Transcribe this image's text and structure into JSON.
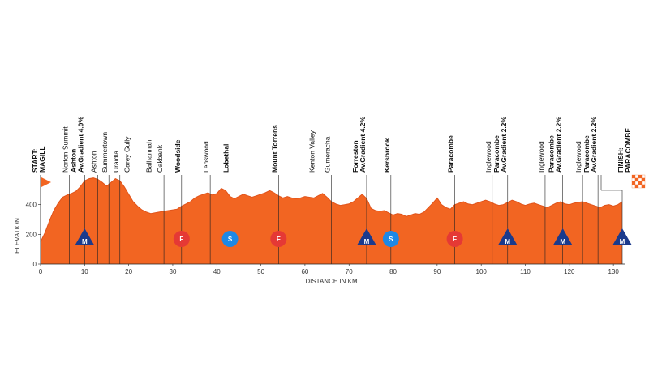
{
  "chart_data": {
    "type": "area",
    "xlabel": "DISTANCE IN KM",
    "ylabel": "ELEVATION",
    "xlim": [
      0,
      132
    ],
    "ylim": [
      0,
      600
    ],
    "x_ticks": [
      0,
      10,
      20,
      30,
      40,
      50,
      60,
      70,
      80,
      90,
      100,
      110,
      120,
      130
    ],
    "y_ticks": [
      0,
      200,
      400
    ],
    "grid": false,
    "colors": {
      "fill": "#f26522",
      "line": "#e0531a",
      "climb": "#1b3a8c",
      "sprint": "#1e88e5",
      "feed": "#e53935"
    },
    "x": [
      0,
      1,
      2,
      3,
      4,
      5,
      6,
      7,
      8,
      9,
      10,
      11,
      12,
      13,
      14,
      15,
      16,
      17,
      18,
      19,
      20,
      21,
      22,
      23,
      24,
      25,
      26,
      27,
      28,
      29,
      30,
      31,
      32,
      33,
      34,
      35,
      36,
      37,
      38,
      39,
      40,
      41,
      42,
      43,
      44,
      45,
      46,
      47,
      48,
      49,
      50,
      51,
      52,
      53,
      54,
      55,
      56,
      57,
      58,
      59,
      60,
      61,
      62,
      63,
      64,
      65,
      66,
      67,
      68,
      69,
      70,
      71,
      72,
      73,
      74,
      75,
      76,
      77,
      78,
      79,
      80,
      81,
      82,
      83,
      84,
      85,
      86,
      87,
      88,
      89,
      90,
      91,
      92,
      93,
      94,
      95,
      96,
      97,
      98,
      99,
      100,
      101,
      102,
      103,
      104,
      105,
      106,
      107,
      108,
      109,
      110,
      111,
      112,
      113,
      114,
      115,
      116,
      117,
      118,
      119,
      120,
      121,
      122,
      123,
      124,
      125,
      126,
      127,
      128,
      129,
      130,
      131,
      132
    ],
    "y": [
      150,
      210,
      290,
      360,
      410,
      450,
      465,
      475,
      490,
      520,
      560,
      575,
      580,
      570,
      550,
      525,
      550,
      575,
      560,
      520,
      470,
      420,
      390,
      365,
      350,
      340,
      345,
      350,
      355,
      360,
      365,
      370,
      390,
      405,
      420,
      445,
      460,
      470,
      480,
      465,
      475,
      510,
      495,
      455,
      440,
      455,
      470,
      460,
      450,
      460,
      470,
      480,
      495,
      480,
      460,
      445,
      455,
      445,
      440,
      445,
      455,
      450,
      445,
      460,
      475,
      450,
      420,
      405,
      395,
      400,
      405,
      420,
      445,
      470,
      440,
      375,
      360,
      355,
      360,
      345,
      330,
      340,
      335,
      320,
      330,
      340,
      335,
      350,
      380,
      410,
      445,
      400,
      380,
      370,
      400,
      410,
      420,
      405,
      400,
      410,
      420,
      430,
      420,
      405,
      395,
      400,
      415,
      430,
      420,
      405,
      395,
      405,
      410,
      400,
      390,
      380,
      395,
      410,
      420,
      405,
      400,
      410,
      415,
      420,
      410,
      400,
      390,
      380,
      395,
      400,
      390,
      400,
      420
    ],
    "start_labels": [
      "START:",
      "MAGILL"
    ],
    "finish_labels": [
      "FINISH:",
      "PARACOMBE"
    ],
    "waypoints": [
      {
        "km": 6.5,
        "lines": [
          "Norton Summit"
        ],
        "bold": false
      },
      {
        "km": 10.0,
        "lines": [
          "Ashton",
          "Av.Gradient 4.0%"
        ],
        "bold": true
      },
      {
        "km": 13.0,
        "lines": [
          "Ashton"
        ],
        "bold": false
      },
      {
        "km": 15.5,
        "lines": [
          "Summertown"
        ],
        "bold": false
      },
      {
        "km": 18.0,
        "lines": [
          "Uraidla"
        ],
        "bold": false
      },
      {
        "km": 20.5,
        "lines": [
          "Carey Gully"
        ],
        "bold": false
      },
      {
        "km": 25.5,
        "lines": [
          "Balhannah"
        ],
        "bold": false
      },
      {
        "km": 28.0,
        "lines": [
          "Oakbank"
        ],
        "bold": false
      },
      {
        "km": 32.0,
        "lines": [
          "Woodside"
        ],
        "bold": true
      },
      {
        "km": 38.5,
        "lines": [
          "Lenswood"
        ],
        "bold": false
      },
      {
        "km": 43.0,
        "lines": [
          "Lobethal"
        ],
        "bold": true
      },
      {
        "km": 54.0,
        "lines": [
          "Mount Torrens"
        ],
        "bold": true
      },
      {
        "km": 62.5,
        "lines": [
          "Kenton Valley"
        ],
        "bold": false
      },
      {
        "km": 66.0,
        "lines": [
          "Gumeracha"
        ],
        "bold": false
      },
      {
        "km": 74.0,
        "lines": [
          "Forreston",
          "Av.Gradient 4.2%"
        ],
        "bold": true
      },
      {
        "km": 79.5,
        "lines": [
          "Kersbrook"
        ],
        "bold": true
      },
      {
        "km": 94.0,
        "lines": [
          "Paracombe"
        ],
        "bold": true
      },
      {
        "km": 102.5,
        "lines": [
          "Inglewood"
        ],
        "bold": false
      },
      {
        "km": 106.0,
        "lines": [
          "Paracombe",
          "Av.Gradient 2.2%"
        ],
        "bold": true
      },
      {
        "km": 114.5,
        "lines": [
          "Inglewood"
        ],
        "bold": false
      },
      {
        "km": 118.5,
        "lines": [
          "Paracombe",
          "Av.Gradient 2.2%"
        ],
        "bold": true
      },
      {
        "km": 123.0,
        "lines": [
          "Inglewood"
        ],
        "bold": false
      },
      {
        "km": 126.5,
        "lines": [
          "Paracombe",
          "Av.Gradient 2.2%"
        ],
        "bold": true
      }
    ],
    "markers": [
      {
        "km": 10.0,
        "type": "climb",
        "letter": "M"
      },
      {
        "km": 32.0,
        "type": "feed",
        "letter": "F"
      },
      {
        "km": 43.0,
        "type": "sprint",
        "letter": "S"
      },
      {
        "km": 54.0,
        "type": "feed",
        "letter": "F"
      },
      {
        "km": 74.0,
        "type": "climb",
        "letter": "M"
      },
      {
        "km": 79.5,
        "type": "sprint",
        "letter": "S"
      },
      {
        "km": 94.0,
        "type": "feed",
        "letter": "F"
      },
      {
        "km": 106.0,
        "type": "climb",
        "letter": "M"
      },
      {
        "km": 118.5,
        "type": "climb",
        "letter": "M"
      },
      {
        "km": 132.0,
        "type": "climb",
        "letter": "M"
      }
    ],
    "marker_elevation": 180
  }
}
